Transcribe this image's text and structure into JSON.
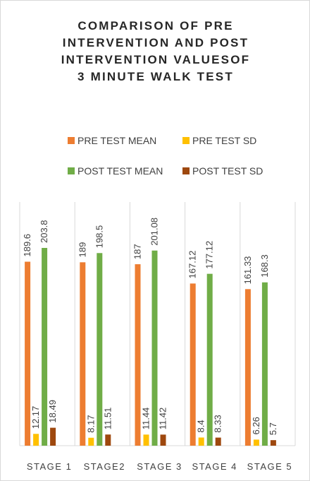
{
  "chart_data": {
    "type": "bar",
    "title": "COMPARISON OF PRE INTERVENTION AND POST INTERVENTION VALUESOF 3 MINUTE WALK TEST",
    "categories": [
      "STAGE 1",
      "STAGE2",
      "STAGE 3",
      "STAGE 4",
      "STAGE 5"
    ],
    "series": [
      {
        "name": "PRE TEST MEAN",
        "color": "#ed7d31",
        "values": [
          189.6,
          189,
          187,
          167.12,
          161.33
        ]
      },
      {
        "name": "PRE TEST SD",
        "color": "#ffc000",
        "values": [
          12.17,
          8.17,
          11.44,
          8.4,
          6.26
        ]
      },
      {
        "name": "POST TEST MEAN",
        "color": "#70ad47",
        "values": [
          203.8,
          198.5,
          201.08,
          177.12,
          168.3
        ]
      },
      {
        "name": "POST TEST SD",
        "color": "#9e480e",
        "values": [
          18.49,
          11.51,
          11.42,
          8.33,
          5.7
        ]
      }
    ]
  }
}
